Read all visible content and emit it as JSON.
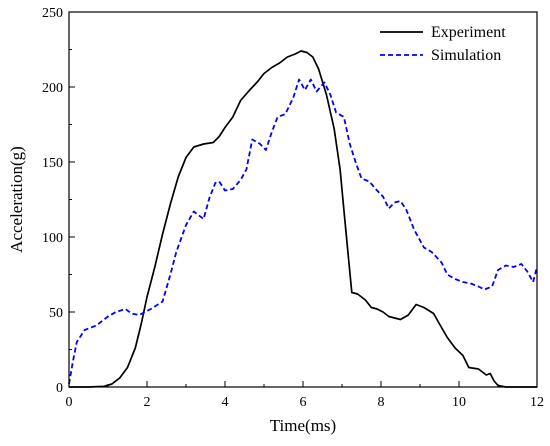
{
  "chart_data": {
    "type": "line",
    "title": "",
    "xlabel": "Time(ms)",
    "ylabel": "Acceleration(g)",
    "xlim": [
      0,
      12
    ],
    "ylim": [
      0,
      250
    ],
    "x_ticks": [
      0,
      2,
      4,
      6,
      8,
      10,
      12
    ],
    "y_ticks": [
      0,
      50,
      100,
      150,
      200,
      250
    ],
    "grid": false,
    "legend_position": "top-right",
    "series": [
      {
        "name": "Experiment",
        "color": "#000000",
        "line_style": "solid",
        "points": [
          [
            0,
            0
          ],
          [
            0.5,
            0
          ],
          [
            0.9,
            0.5
          ],
          [
            1.1,
            2
          ],
          [
            1.3,
            6
          ],
          [
            1.5,
            13
          ],
          [
            1.7,
            26
          ],
          [
            1.85,
            42
          ],
          [
            2.0,
            60
          ],
          [
            2.2,
            80
          ],
          [
            2.4,
            102
          ],
          [
            2.6,
            122
          ],
          [
            2.8,
            140
          ],
          [
            3.0,
            153
          ],
          [
            3.2,
            160
          ],
          [
            3.45,
            162
          ],
          [
            3.7,
            163
          ],
          [
            3.85,
            167
          ],
          [
            4.0,
            173
          ],
          [
            4.2,
            180
          ],
          [
            4.4,
            191
          ],
          [
            4.6,
            197
          ],
          [
            4.85,
            204
          ],
          [
            5.0,
            209
          ],
          [
            5.2,
            213
          ],
          [
            5.4,
            216
          ],
          [
            5.6,
            220
          ],
          [
            5.8,
            222
          ],
          [
            5.95,
            224
          ],
          [
            6.1,
            223
          ],
          [
            6.25,
            220
          ],
          [
            6.4,
            212
          ],
          [
            6.6,
            195
          ],
          [
            6.8,
            172
          ],
          [
            6.95,
            145
          ],
          [
            7.05,
            118
          ],
          [
            7.15,
            90
          ],
          [
            7.25,
            63
          ],
          [
            7.4,
            62
          ],
          [
            7.6,
            58
          ],
          [
            7.75,
            53
          ],
          [
            7.9,
            52
          ],
          [
            8.05,
            50
          ],
          [
            8.2,
            47
          ],
          [
            8.5,
            45
          ],
          [
            8.7,
            48
          ],
          [
            8.9,
            55
          ],
          [
            9.1,
            53
          ],
          [
            9.35,
            49
          ],
          [
            9.5,
            42
          ],
          [
            9.7,
            33
          ],
          [
            9.9,
            26
          ],
          [
            10.1,
            21
          ],
          [
            10.25,
            13
          ],
          [
            10.5,
            12
          ],
          [
            10.7,
            8
          ],
          [
            10.8,
            9
          ],
          [
            10.9,
            4
          ],
          [
            11.0,
            1
          ],
          [
            11.2,
            0
          ],
          [
            12,
            0
          ]
        ]
      },
      {
        "name": "Simulation",
        "color": "#0000ff",
        "line_style": "dashed",
        "points": [
          [
            0,
            2
          ],
          [
            0.1,
            17
          ],
          [
            0.2,
            30
          ],
          [
            0.4,
            38
          ],
          [
            0.7,
            41
          ],
          [
            1.0,
            47
          ],
          [
            1.2,
            50
          ],
          [
            1.45,
            52
          ],
          [
            1.6,
            49
          ],
          [
            1.8,
            48
          ],
          [
            2.1,
            52
          ],
          [
            2.4,
            57
          ],
          [
            2.6,
            75
          ],
          [
            2.75,
            90
          ],
          [
            3.0,
            108
          ],
          [
            3.2,
            117
          ],
          [
            3.45,
            112
          ],
          [
            3.6,
            126
          ],
          [
            3.75,
            136
          ],
          [
            3.85,
            137
          ],
          [
            4.0,
            131
          ],
          [
            4.2,
            132
          ],
          [
            4.4,
            138
          ],
          [
            4.55,
            145
          ],
          [
            4.7,
            165
          ],
          [
            4.9,
            162
          ],
          [
            5.05,
            158
          ],
          [
            5.2,
            170
          ],
          [
            5.35,
            180
          ],
          [
            5.55,
            182
          ],
          [
            5.75,
            193
          ],
          [
            5.9,
            205
          ],
          [
            6.05,
            198
          ],
          [
            6.2,
            205
          ],
          [
            6.35,
            197
          ],
          [
            6.55,
            203
          ],
          [
            6.7,
            195
          ],
          [
            6.85,
            183
          ],
          [
            7.05,
            180
          ],
          [
            7.2,
            162
          ],
          [
            7.35,
            150
          ],
          [
            7.5,
            139
          ],
          [
            7.7,
            137
          ],
          [
            7.9,
            131
          ],
          [
            8.05,
            127
          ],
          [
            8.2,
            119
          ],
          [
            8.35,
            123
          ],
          [
            8.5,
            124
          ],
          [
            8.65,
            118
          ],
          [
            8.85,
            105
          ],
          [
            9.1,
            93
          ],
          [
            9.3,
            90
          ],
          [
            9.55,
            83
          ],
          [
            9.7,
            75
          ],
          [
            9.9,
            72
          ],
          [
            10.1,
            70
          ],
          [
            10.3,
            69
          ],
          [
            10.5,
            67
          ],
          [
            10.65,
            65
          ],
          [
            10.85,
            67
          ],
          [
            11.0,
            78
          ],
          [
            11.2,
            81
          ],
          [
            11.4,
            80
          ],
          [
            11.6,
            82
          ],
          [
            11.75,
            77
          ],
          [
            11.9,
            70
          ],
          [
            12,
            80
          ]
        ]
      }
    ]
  }
}
